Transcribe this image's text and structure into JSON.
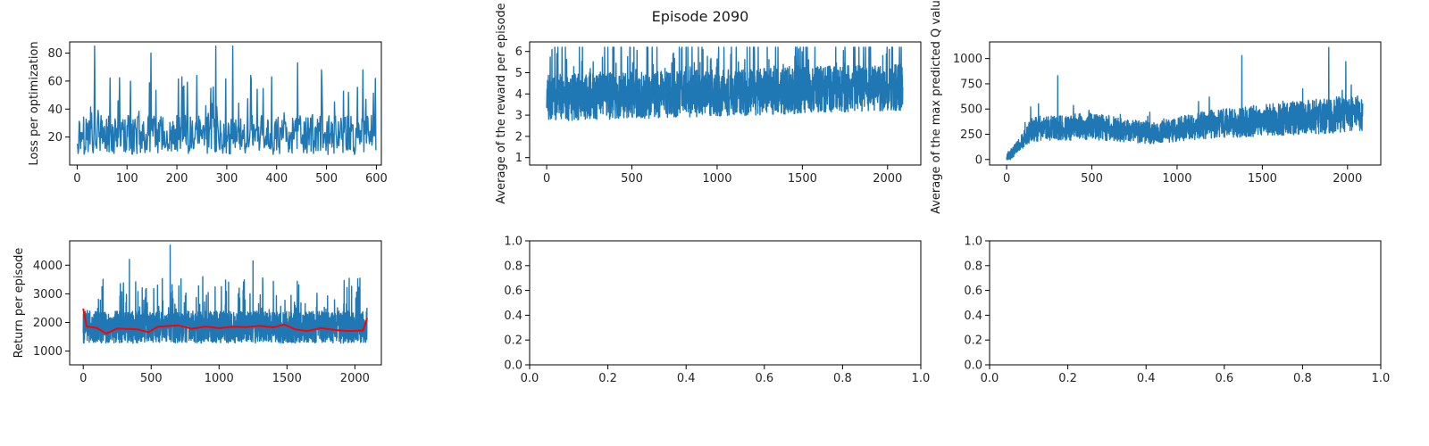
{
  "figure": {
    "suptitle": "Episode 2090"
  },
  "colors": {
    "series": "#1f77b4",
    "moving_average": "#ff0000",
    "axes": "#000000",
    "background": "#ffffff"
  },
  "chart_data": [
    {
      "type": "line",
      "panel": "top-left",
      "xlabel": "",
      "ylabel": "Loss per optimization",
      "xlim": [
        -15,
        610
      ],
      "ylim": [
        0,
        88
      ],
      "xticks": [
        0,
        100,
        200,
        300,
        400,
        500,
        600
      ],
      "yticks": [
        20,
        40,
        60,
        80
      ],
      "series": [
        {
          "role": "raw",
          "n": 600,
          "baseline": 20,
          "spread": 14,
          "min": 5,
          "max": 85,
          "peaks": [
            [
              35,
              85
            ],
            [
              148,
              80
            ],
            [
              278,
              85
            ],
            [
              312,
              85
            ],
            [
              210,
              63
            ],
            [
              240,
              64
            ],
            [
              348,
              64
            ],
            [
              390,
              63
            ],
            [
              442,
              73
            ],
            [
              490,
              68
            ],
            [
              573,
              68
            ]
          ]
        }
      ]
    },
    {
      "type": "line",
      "panel": "top-middle",
      "xlabel": "",
      "ylabel": "Average of the reward per episode",
      "xlim": [
        -100,
        2195
      ],
      "ylim": [
        0.65,
        6.45
      ],
      "xticks": [
        0,
        500,
        1000,
        1500,
        2000
      ],
      "yticks": [
        1,
        2,
        3,
        4,
        5,
        6
      ],
      "series": [
        {
          "role": "raw",
          "n": 2090,
          "baseline_start": 3.7,
          "baseline_end": 4.2,
          "spread": 1.1,
          "min": 0.9,
          "max": 6.2,
          "peaks": [
            [
              60,
              5.9
            ],
            [
              1900,
              6.2
            ],
            [
              2010,
              6.1
            ]
          ]
        }
      ]
    },
    {
      "type": "line",
      "panel": "top-right",
      "xlabel": "",
      "ylabel": "Average of the max predicted Q value",
      "xlim": [
        -100,
        2195
      ],
      "ylim": [
        -55,
        1165
      ],
      "xticks": [
        0,
        500,
        1000,
        1500,
        2000
      ],
      "yticks": [
        0,
        250,
        500,
        750,
        1000
      ],
      "series": [
        {
          "role": "raw",
          "n": 2090,
          "min": 0,
          "max": 1110,
          "trend": [
            [
              0,
              0
            ],
            [
              150,
              300
            ],
            [
              500,
              330
            ],
            [
              850,
              260
            ],
            [
              1200,
              350
            ],
            [
              1600,
              400
            ],
            [
              2090,
              460
            ]
          ],
          "peaks": [
            [
              300,
              830
            ],
            [
              1380,
              1030
            ],
            [
              1890,
              1110
            ],
            [
              1990,
              970
            ]
          ]
        }
      ]
    },
    {
      "type": "line",
      "panel": "bottom-left",
      "xlabel": "",
      "ylabel": "Return per episode",
      "xlim": [
        -100,
        2195
      ],
      "ylim": [
        520,
        4850
      ],
      "xticks": [
        0,
        500,
        1000,
        1500,
        2000
      ],
      "yticks": [
        1000,
        2000,
        3000,
        4000
      ],
      "series": [
        {
          "role": "raw",
          "n": 2090,
          "baseline": 1780,
          "spread": 560,
          "min": 650,
          "max": 4700,
          "peaks": [
            [
              340,
              4200
            ],
            [
              640,
              4700
            ],
            [
              1250,
              4150
            ],
            [
              880,
              3600
            ]
          ]
        },
        {
          "role": "moving_average",
          "points": [
            [
              0,
              2480
            ],
            [
              25,
              1860
            ],
            [
              100,
              1810
            ],
            [
              170,
              1610
            ],
            [
              250,
              1790
            ],
            [
              400,
              1760
            ],
            [
              480,
              1660
            ],
            [
              550,
              1850
            ],
            [
              700,
              1900
            ],
            [
              800,
              1780
            ],
            [
              900,
              1860
            ],
            [
              1000,
              1800
            ],
            [
              1100,
              1850
            ],
            [
              1200,
              1840
            ],
            [
              1300,
              1880
            ],
            [
              1400,
              1830
            ],
            [
              1480,
              1930
            ],
            [
              1560,
              1760
            ],
            [
              1650,
              1700
            ],
            [
              1750,
              1800
            ],
            [
              1850,
              1740
            ],
            [
              1950,
              1700
            ],
            [
              2060,
              1720
            ],
            [
              2090,
              2150
            ]
          ]
        }
      ]
    },
    {
      "type": "line",
      "panel": "bottom-middle",
      "xlabel": "",
      "ylabel": "",
      "xlim": [
        0,
        1
      ],
      "ylim": [
        0,
        1
      ],
      "xticks": [
        0.0,
        0.2,
        0.4,
        0.6,
        0.8,
        1.0
      ],
      "yticks": [
        0.0,
        0.2,
        0.4,
        0.6,
        0.8,
        1.0
      ],
      "series": []
    },
    {
      "type": "line",
      "panel": "bottom-right",
      "xlabel": "",
      "ylabel": "",
      "xlim": [
        0,
        1
      ],
      "ylim": [
        0,
        1
      ],
      "xticks": [
        0.0,
        0.2,
        0.4,
        0.6,
        0.8,
        1.0
      ],
      "yticks": [
        0.0,
        0.2,
        0.4,
        0.6,
        0.8,
        1.0
      ],
      "series": []
    }
  ]
}
